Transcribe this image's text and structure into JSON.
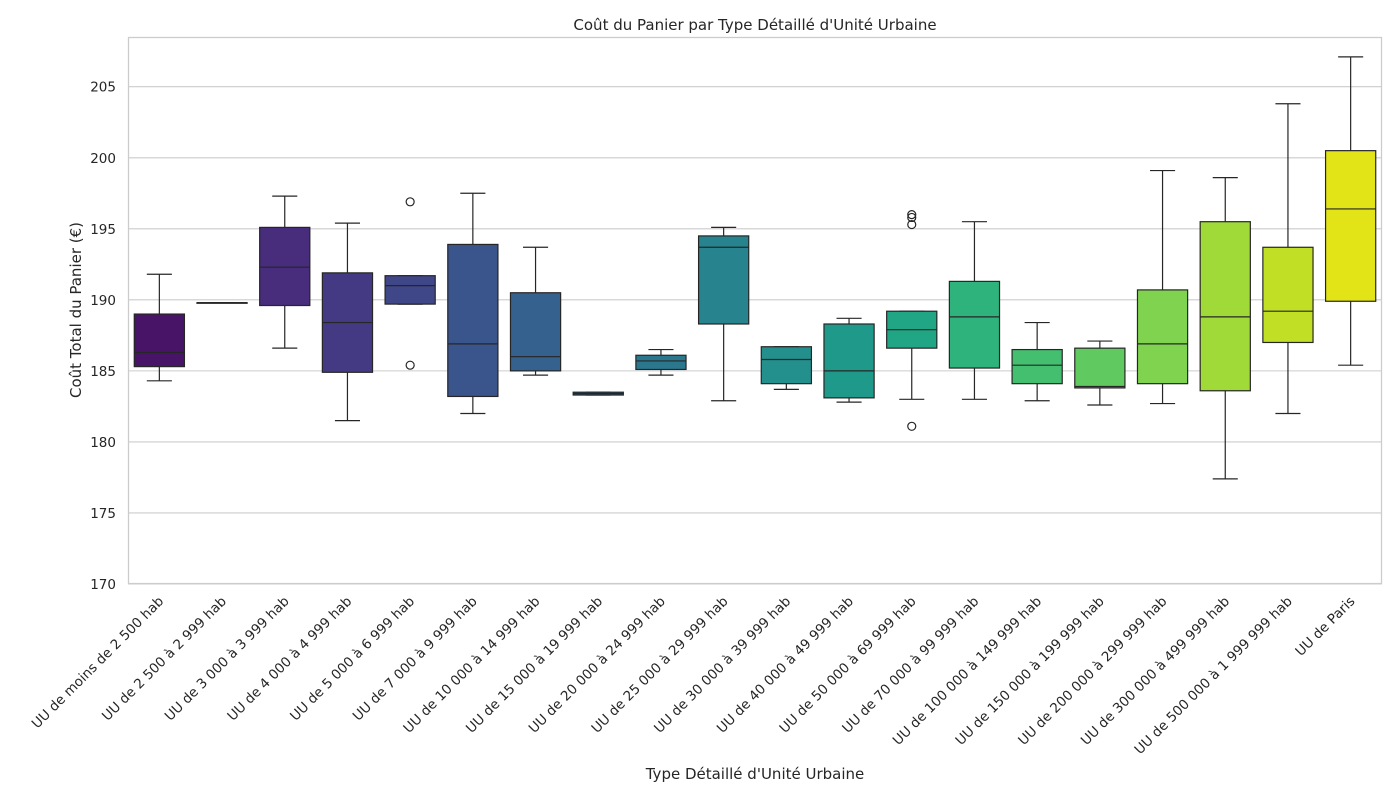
{
  "chart_data": {
    "type": "box",
    "title": "Coût du Panier par Type Détaillé d'Unité Urbaine",
    "xlabel": "Type Détaillé d'Unité Urbaine",
    "ylabel": "Coût Total du Panier (€)",
    "ylim": [
      170,
      208.5
    ],
    "yticks": [
      170,
      175,
      180,
      185,
      190,
      195,
      200,
      205
    ],
    "grid": "horizontal",
    "categories": [
      "UU de moins de 2 500 hab",
      "UU de 2 500 à 2 999 hab",
      "UU de 3 000 à 3 999 hab",
      "UU de 4 000 à 4 999 hab",
      "UU de 5 000 à 6 999 hab",
      "UU de 7 000 à 9 999 hab",
      "UU de 10 000 à 14 999 hab",
      "UU de 15 000 à 19 999 hab",
      "UU de 20 000 à 24 999 hab",
      "UU de 25 000 à 29 999 hab",
      "UU de 30 000 à 39 999 hab",
      "UU de 40 000 à 49 999 hab",
      "UU de 50 000 à 69 999 hab",
      "UU de 70 000 à 99 999 hab",
      "UU de 100 000 à 149 999 hab",
      "UU de 150 000 à 199 999 hab",
      "UU de 200 000 à 299 999 hab",
      "UU de 300 000 à 499 999 hab",
      "UU de 500 000 à 1 999 999 hab",
      "UU de Paris"
    ],
    "boxes": [
      {
        "whislo": 184.3,
        "q1": 185.3,
        "med": 186.3,
        "q3": 189.0,
        "whishi": 191.8,
        "fliers": [],
        "color": "#481467"
      },
      {
        "whislo": 189.8,
        "q1": 189.8,
        "med": 189.8,
        "q3": 189.8,
        "whishi": 189.8,
        "fliers": [],
        "color": "#482071"
      },
      {
        "whislo": 186.6,
        "q1": 189.6,
        "med": 192.3,
        "q3": 195.1,
        "whishi": 197.3,
        "fliers": [],
        "color": "#472d7b"
      },
      {
        "whislo": 181.5,
        "q1": 184.9,
        "med": 188.4,
        "q3": 191.9,
        "whishi": 195.4,
        "fliers": [],
        "color": "#443a83"
      },
      {
        "whislo": 189.7,
        "q1": 189.7,
        "med": 191.0,
        "q3": 191.7,
        "whishi": 191.7,
        "fliers": [
          196.9,
          185.4
        ],
        "color": "#3f4788"
      },
      {
        "whislo": 182.0,
        "q1": 183.2,
        "med": 186.9,
        "q3": 193.9,
        "whishi": 197.5,
        "fliers": [],
        "color": "#3a548c"
      },
      {
        "whislo": 184.7,
        "q1": 185.0,
        "med": 186.0,
        "q3": 190.5,
        "whishi": 193.7,
        "fliers": [],
        "color": "#34618d"
      },
      {
        "whislo": 183.3,
        "q1": 183.3,
        "med": 183.4,
        "q3": 183.5,
        "whishi": 183.5,
        "fliers": [],
        "color": "#2f6c8e"
      },
      {
        "whislo": 184.7,
        "q1": 185.1,
        "med": 185.7,
        "q3": 186.1,
        "whishi": 186.5,
        "fliers": [],
        "color": "#2b788e"
      },
      {
        "whislo": 182.9,
        "q1": 188.3,
        "med": 193.7,
        "q3": 194.5,
        "whishi": 195.1,
        "fliers": [],
        "color": "#27838e"
      },
      {
        "whislo": 183.7,
        "q1": 184.1,
        "med": 185.8,
        "q3": 186.7,
        "whishi": 186.7,
        "fliers": [],
        "color": "#23908d"
      },
      {
        "whislo": 182.8,
        "q1": 183.1,
        "med": 185.0,
        "q3": 188.3,
        "whishi": 188.7,
        "fliers": [],
        "color": "#1f9a8a"
      },
      {
        "whislo": 183.0,
        "q1": 186.6,
        "med": 187.9,
        "q3": 189.2,
        "whishi": 189.2,
        "fliers": [
          196.0,
          195.8,
          195.3,
          181.1
        ],
        "color": "#21a685"
      },
      {
        "whislo": 183.0,
        "q1": 185.2,
        "med": 188.8,
        "q3": 191.3,
        "whishi": 195.5,
        "fliers": [],
        "color": "#2eb37c"
      },
      {
        "whislo": 182.9,
        "q1": 184.1,
        "med": 185.4,
        "q3": 186.5,
        "whishi": 188.4,
        "fliers": [],
        "color": "#44bf70"
      },
      {
        "whislo": 182.6,
        "q1": 183.8,
        "med": 183.9,
        "q3": 186.6,
        "whishi": 187.1,
        "fliers": [],
        "color": "#60ca60"
      },
      {
        "whislo": 182.7,
        "q1": 184.1,
        "med": 186.9,
        "q3": 190.7,
        "whishi": 199.1,
        "fliers": [],
        "color": "#7fd34e"
      },
      {
        "whislo": 177.4,
        "q1": 183.6,
        "med": 188.8,
        "q3": 195.5,
        "whishi": 198.6,
        "fliers": [],
        "color": "#a0da39"
      },
      {
        "whislo": 182.0,
        "q1": 187.0,
        "med": 189.2,
        "q3": 193.7,
        "whishi": 203.8,
        "fliers": [],
        "color": "#c0df25"
      },
      {
        "whislo": 185.4,
        "q1": 189.9,
        "med": 196.4,
        "q3": 200.5,
        "whishi": 207.1,
        "fliers": [],
        "color": "#e2e418"
      }
    ]
  }
}
